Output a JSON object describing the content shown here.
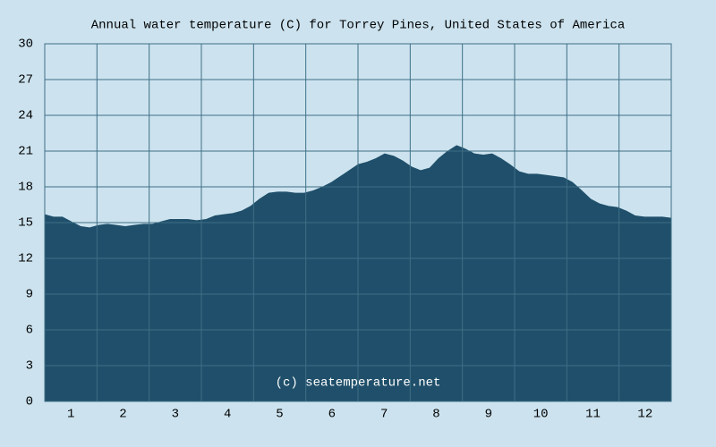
{
  "chart_data": {
    "type": "area",
    "title": "Annual water temperature (C) for Torrey Pines, United States of America",
    "annotation": "(c) seatemperature.net",
    "color": "#1f4f6a",
    "grid": true,
    "x": [
      0.5,
      0.67,
      0.84,
      1.01,
      1.19,
      1.36,
      1.53,
      1.7,
      1.87,
      2.04,
      2.21,
      2.39,
      2.56,
      2.73,
      2.9,
      3.07,
      3.24,
      3.41,
      3.59,
      3.76,
      3.93,
      4.1,
      4.27,
      4.44,
      4.61,
      4.79,
      4.96,
      5.13,
      5.3,
      5.47,
      5.64,
      5.81,
      5.99,
      6.16,
      6.33,
      6.5,
      6.67,
      6.84,
      7.01,
      7.19,
      7.36,
      7.53,
      7.7,
      7.87,
      8.04,
      8.21,
      8.39,
      8.56,
      8.73,
      8.9,
      9.07,
      9.24,
      9.41,
      9.59,
      9.76,
      9.93,
      10.1,
      10.27,
      10.44,
      10.61,
      10.79,
      10.96,
      11.13,
      11.3,
      11.47,
      11.64,
      11.81,
      11.99,
      12.16,
      12.33,
      12.5
    ],
    "values": [
      15.7,
      15.5,
      15.5,
      15.1,
      14.7,
      14.6,
      14.8,
      14.9,
      14.8,
      14.7,
      14.8,
      14.9,
      14.9,
      15.1,
      15.3,
      15.3,
      15.3,
      15.2,
      15.3,
      15.6,
      15.7,
      15.8,
      16.0,
      16.4,
      17.0,
      17.5,
      17.6,
      17.6,
      17.5,
      17.5,
      17.7,
      18.0,
      18.4,
      18.9,
      19.4,
      19.9,
      20.1,
      20.4,
      20.8,
      20.6,
      20.2,
      19.7,
      19.4,
      19.6,
      20.4,
      21.0,
      21.5,
      21.2,
      20.8,
      20.7,
      20.8,
      20.4,
      19.9,
      19.3,
      19.1,
      19.1,
      19.0,
      18.9,
      18.8,
      18.4,
      17.7,
      17.0,
      16.6,
      16.4,
      16.3,
      16.0,
      15.6,
      15.5,
      15.5,
      15.5,
      15.4
    ],
    "xlim": [
      0.5,
      12.5
    ],
    "xticks": [
      1,
      2,
      3,
      4,
      5,
      6,
      7,
      8,
      9,
      10,
      11,
      12
    ],
    "ylim": [
      0,
      30
    ],
    "yticks": [
      0,
      3,
      6,
      9,
      12,
      15,
      18,
      21,
      24,
      27,
      30
    ]
  }
}
